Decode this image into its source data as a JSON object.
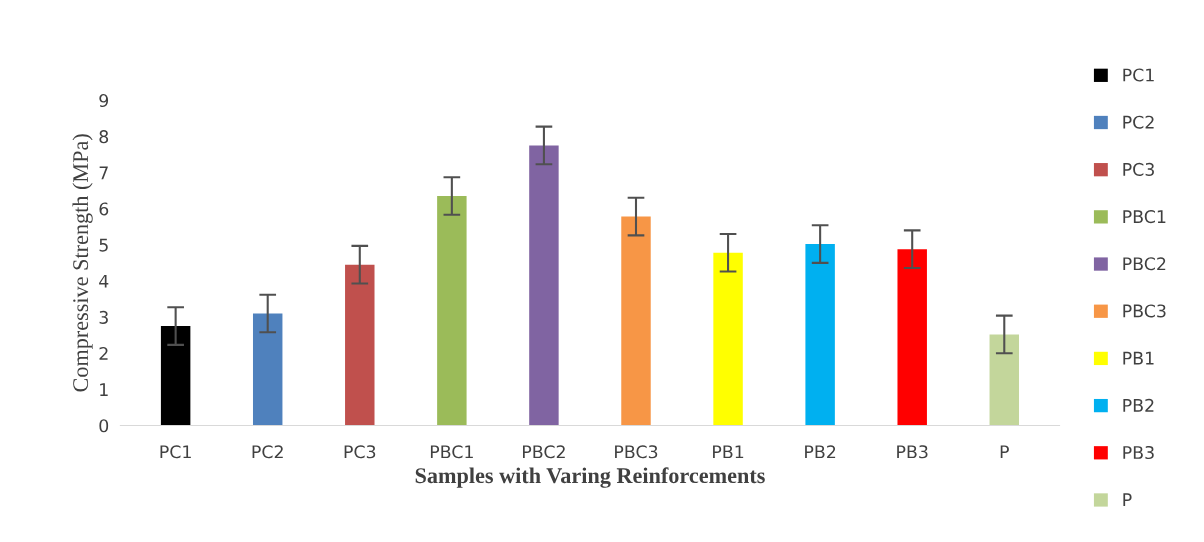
{
  "chart_data": {
    "type": "bar",
    "xlabel": "Samples with Varing Reinforcements",
    "ylabel": "Compressive Strength (MPa)",
    "categories": [
      "PC1",
      "PC2",
      "PC3",
      "PBC1",
      "PBC2",
      "PBC3",
      "PB1",
      "PB2",
      "PB3",
      "P"
    ],
    "series": [
      {
        "name": "PC1",
        "color": "#000000",
        "values": [
          2.75,
          null,
          null,
          null,
          null,
          null,
          null,
          null,
          null,
          null
        ],
        "errors": [
          0.52,
          null,
          null,
          null,
          null,
          null,
          null,
          null,
          null,
          null
        ]
      },
      {
        "name": "PC2",
        "color": "#4f81bd",
        "values": [
          null,
          3.1,
          null,
          null,
          null,
          null,
          null,
          null,
          null,
          null
        ],
        "errors": [
          null,
          0.52,
          null,
          null,
          null,
          null,
          null,
          null,
          null,
          null
        ]
      },
      {
        "name": "PC3",
        "color": "#c0504d",
        "values": [
          null,
          null,
          4.45,
          null,
          null,
          null,
          null,
          null,
          null,
          null
        ],
        "errors": [
          null,
          null,
          0.52,
          null,
          null,
          null,
          null,
          null,
          null,
          null
        ]
      },
      {
        "name": "PBC1",
        "color": "#9bbb59",
        "values": [
          null,
          null,
          null,
          6.35,
          null,
          null,
          null,
          null,
          null,
          null
        ],
        "errors": [
          null,
          null,
          null,
          0.52,
          null,
          null,
          null,
          null,
          null,
          null
        ]
      },
      {
        "name": "PBC2",
        "color": "#8064a2",
        "values": [
          null,
          null,
          null,
          null,
          7.75,
          null,
          null,
          null,
          null,
          null
        ],
        "errors": [
          null,
          null,
          null,
          null,
          0.52,
          null,
          null,
          null,
          null,
          null
        ]
      },
      {
        "name": "PBC3",
        "color": "#f79646",
        "values": [
          null,
          null,
          null,
          null,
          null,
          5.78,
          null,
          null,
          null,
          null
        ],
        "errors": [
          null,
          null,
          null,
          null,
          null,
          0.52,
          null,
          null,
          null,
          null
        ]
      },
      {
        "name": "PB1",
        "color": "#ffff00",
        "values": [
          null,
          null,
          null,
          null,
          null,
          null,
          4.78,
          null,
          null,
          null
        ],
        "errors": [
          null,
          null,
          null,
          null,
          null,
          null,
          0.52,
          null,
          null,
          null
        ]
      },
      {
        "name": "PB2",
        "color": "#00b0f0",
        "values": [
          null,
          null,
          null,
          null,
          null,
          null,
          null,
          5.02,
          null,
          null
        ],
        "errors": [
          null,
          null,
          null,
          null,
          null,
          null,
          null,
          0.52,
          null,
          null
        ]
      },
      {
        "name": "PB3",
        "color": "#ff0000",
        "values": [
          null,
          null,
          null,
          null,
          null,
          null,
          null,
          null,
          4.88,
          null
        ],
        "errors": [
          null,
          null,
          null,
          null,
          null,
          null,
          null,
          null,
          0.52,
          null
        ]
      },
      {
        "name": "P",
        "color": "#c3d69b",
        "values": [
          null,
          null,
          null,
          null,
          null,
          null,
          null,
          null,
          null,
          2.52
        ],
        "errors": [
          null,
          null,
          null,
          null,
          null,
          null,
          null,
          null,
          null,
          0.52
        ]
      }
    ],
    "ylim": [
      0,
      9
    ],
    "yticks": [
      0,
      1,
      2,
      3,
      4,
      5,
      6,
      7,
      8,
      9
    ],
    "grid": false,
    "legend": "right"
  }
}
